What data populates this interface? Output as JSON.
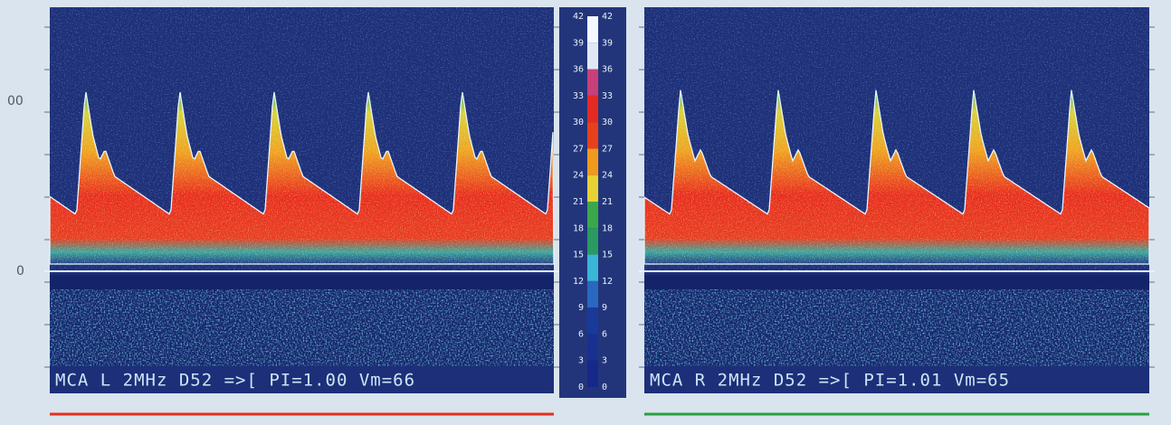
{
  "panels": [
    {
      "caption": "MCA L 2MHz D52 =>[ PI=1.00 Vm=66"
    },
    {
      "caption": "MCA R 2MHz D52 =>[ PI=1.01 Vm=65"
    }
  ],
  "axis": {
    "labels": [
      "00",
      "0"
    ]
  },
  "scale": {
    "labels": [
      "42",
      "39",
      "36",
      "33",
      "30",
      "27",
      "24",
      "21",
      "18",
      "15",
      "12",
      "9",
      "6",
      "3",
      "0"
    ]
  }
}
